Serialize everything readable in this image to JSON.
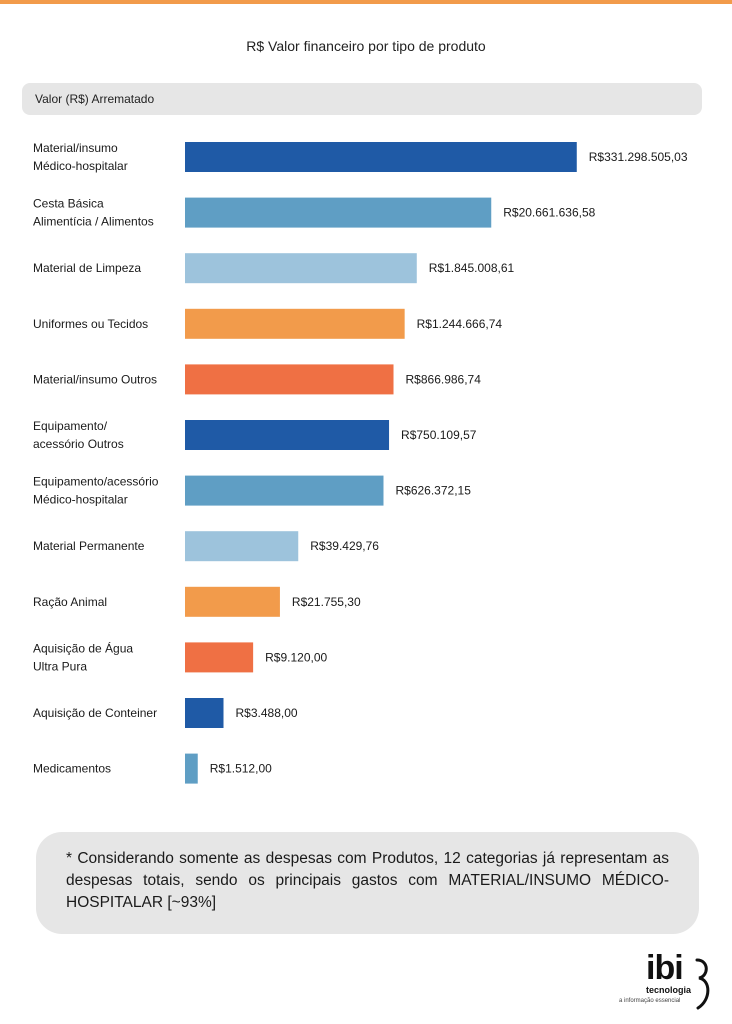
{
  "colors": {
    "accent_stripe": "#f29b4b",
    "dark_blue": "#1f5aa6",
    "mid_blue": "#5f9ec4",
    "light_blue": "#9dc3dc",
    "light_orange": "#f29b4b",
    "dark_orange": "#ef7044"
  },
  "logo": {
    "mark": "ibi",
    "brand": "tecnologia",
    "tagline": "a informação essencial"
  },
  "note": {
    "text": "* Considerando somente as despesas com Produtos, 12 categorias já representam as despesas totais, sendo os principais gastos com MATERIAL/INSUMO MÉDICO-HOSPITALAR [~93%]"
  },
  "chart_data": {
    "type": "bar",
    "orientation": "horizontal",
    "title": "R$ Valor financeiro por tipo de produto",
    "series_header": "Valor (R$) Arrematado",
    "categories": [
      [
        "Material/insumo",
        "Médico-hospitalar"
      ],
      [
        "Cesta Básica",
        "Alimentícia / Alimentos"
      ],
      [
        "Material de Limpeza"
      ],
      [
        "Uniformes ou Tecidos"
      ],
      [
        "Material/insumo Outros"
      ],
      [
        "Equipamento/",
        "acessório Outros"
      ],
      [
        "Equipamento/acessório",
        "Médico-hospitalar"
      ],
      [
        "Material Permanente"
      ],
      [
        "Ração Animal"
      ],
      [
        "Aquisição de Água",
        "Ultra Pura"
      ],
      [
        "Aquisição de Conteiner"
      ],
      [
        "Medicamentos"
      ]
    ],
    "values": [
      331298505.03,
      20661636.58,
      1845008.61,
      1244666.74,
      866986.74,
      750109.57,
      626372.15,
      39429.76,
      21755.3,
      9120.0,
      3488.0,
      1512.0
    ],
    "value_labels": [
      "R$331.298.505,03",
      "R$20.661.636,58",
      "R$1.845.008,61",
      "R$1.244.666,74",
      "R$866.986,74",
      "R$750.109,57",
      "R$626.372,15",
      "R$39.429,76",
      "R$21.755,30",
      "R$9.120,00",
      "R$3.488,00",
      "R$1.512,00"
    ],
    "bar_colors": [
      "#1f5aa6",
      "#5f9ec4",
      "#9dc3dc",
      "#f29b4b",
      "#ef7044",
      "#1f5aa6",
      "#5f9ec4",
      "#9dc3dc",
      "#f29b4b",
      "#ef7044",
      "#1f5aa6",
      "#5f9ec4"
    ],
    "scale": "log",
    "xlim": [
      1000,
      350000000
    ],
    "grid": false,
    "legend": "none"
  }
}
